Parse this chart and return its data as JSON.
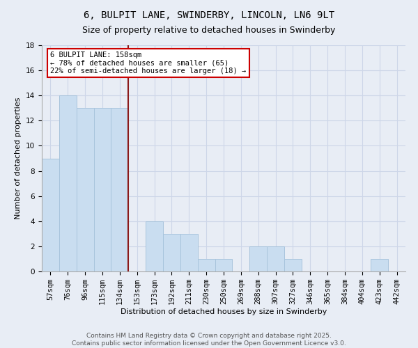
{
  "title_line1": "6, BULPIT LANE, SWINDERBY, LINCOLN, LN6 9LT",
  "title_line2": "Size of property relative to detached houses in Swinderby",
  "xlabel": "Distribution of detached houses by size in Swinderby",
  "ylabel": "Number of detached properties",
  "categories": [
    "57sqm",
    "76sqm",
    "96sqm",
    "115sqm",
    "134sqm",
    "153sqm",
    "173sqm",
    "192sqm",
    "211sqm",
    "230sqm",
    "250sqm",
    "269sqm",
    "288sqm",
    "307sqm",
    "327sqm",
    "346sqm",
    "365sqm",
    "384sqm",
    "404sqm",
    "423sqm",
    "442sqm"
  ],
  "values": [
    9,
    14,
    13,
    13,
    13,
    0,
    4,
    3,
    3,
    1,
    1,
    0,
    2,
    2,
    1,
    0,
    0,
    0,
    0,
    1,
    0
  ],
  "bar_color": "#c9ddf0",
  "bar_edge_color": "#a8c4dc",
  "vline_x": 5.0,
  "vline_color": "#8b1a1a",
  "annotation_text": "6 BULPIT LANE: 158sqm\n← 78% of detached houses are smaller (65)\n22% of semi-detached houses are larger (18) →",
  "annotation_box_facecolor": "#ffffff",
  "annotation_box_edgecolor": "#cc0000",
  "ylim": [
    0,
    18
  ],
  "yticks": [
    0,
    2,
    4,
    6,
    8,
    10,
    12,
    14,
    16,
    18
  ],
  "grid_color": "#cdd6e8",
  "background_color": "#e8edf5",
  "footer_text": "Contains HM Land Registry data © Crown copyright and database right 2025.\nContains public sector information licensed under the Open Government Licence v3.0.",
  "title_fontsize": 10,
  "subtitle_fontsize": 9,
  "axis_label_fontsize": 8,
  "tick_fontsize": 7.5,
  "annotation_fontsize": 7.5,
  "footer_fontsize": 6.5
}
